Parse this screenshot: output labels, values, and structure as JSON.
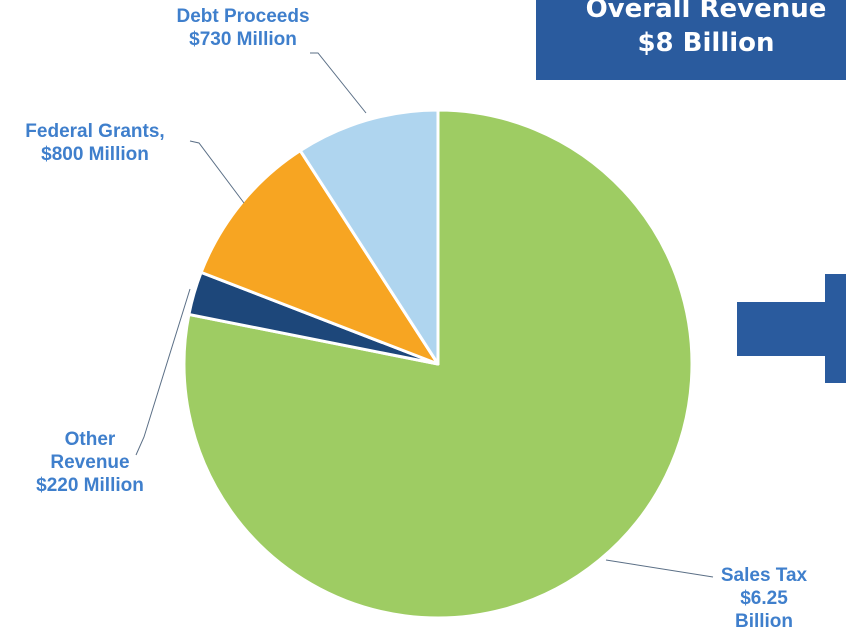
{
  "banner": {
    "line1": "Overall Revenue",
    "line2": "$8 Billion"
  },
  "chart_data": {
    "type": "pie",
    "title": "",
    "unit": "Million",
    "start_angle": "12 o'clock, clockwise",
    "slices": [
      {
        "name": "Sales Tax",
        "value": 6250,
        "color": "#9ecc63",
        "label_lines": [
          "Sales Tax",
          "$6.25",
          "Billion"
        ]
      },
      {
        "name": "Other Revenue",
        "value": 220,
        "color": "#1d477a",
        "label_lines": [
          "Other",
          "Revenue",
          "$220 Million"
        ]
      },
      {
        "name": "Federal Grants",
        "value": 800,
        "color": "#f7a522",
        "label_lines": [
          "Federal Grants,",
          "$800 Million"
        ]
      },
      {
        "name": "Debt Proceeds",
        "value": 730,
        "color": "#afd5ef",
        "label_lines": [
          "Debt Proceeds",
          "$730 Million"
        ]
      }
    ]
  },
  "arrow": {
    "color": "#2a5b9e"
  }
}
